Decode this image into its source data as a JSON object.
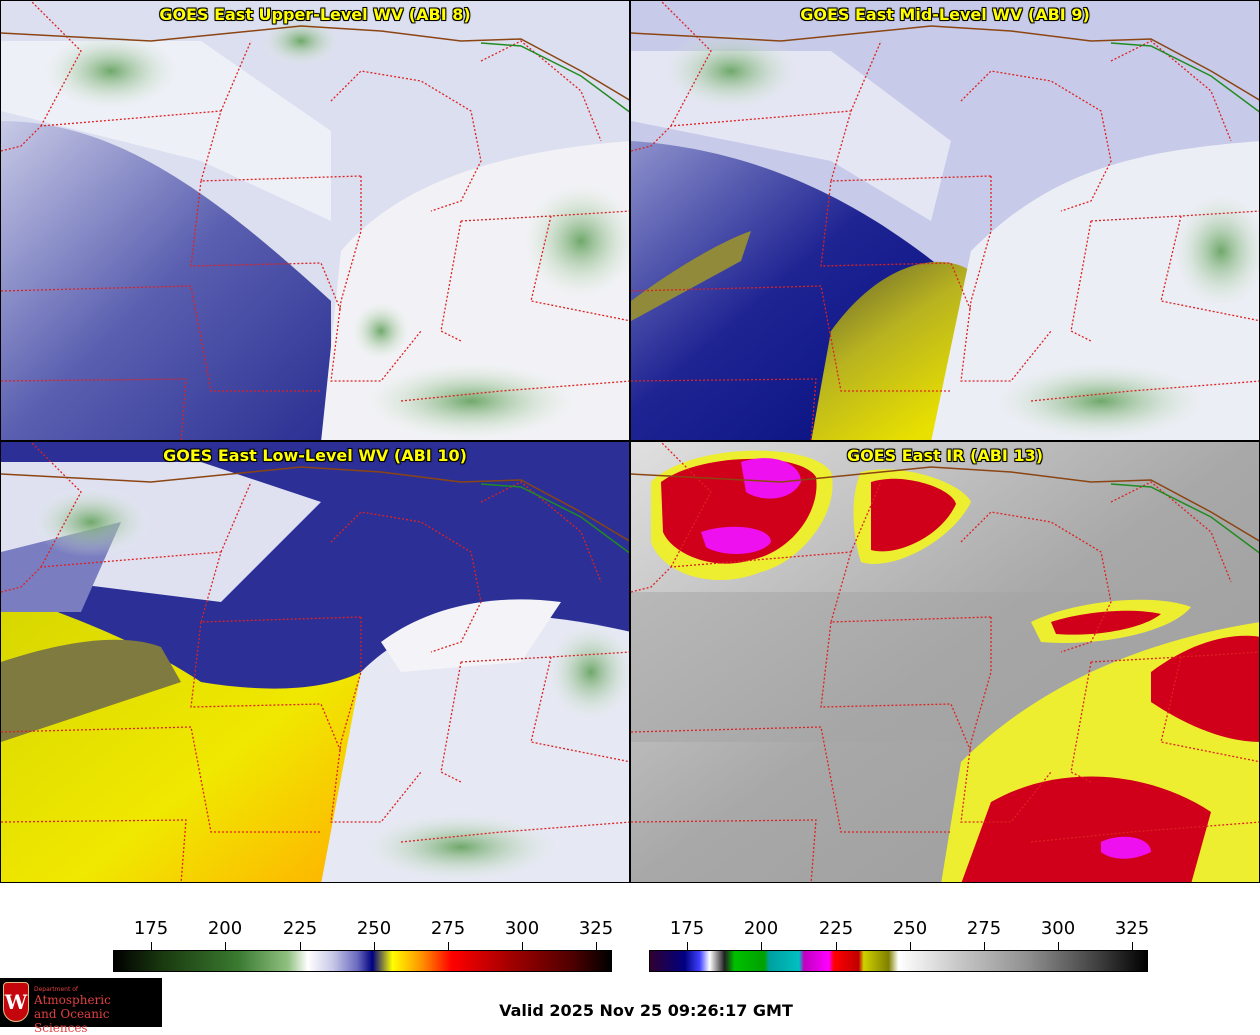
{
  "panels": {
    "upper": {
      "title": "GOES East Upper-Level WV (ABI 8)"
    },
    "mid": {
      "title": "GOES East Mid-Level WV (ABI 9)"
    },
    "low": {
      "title": "GOES East Low-Level WV (ABI 10)"
    },
    "ir": {
      "title": "GOES East IR (ABI 13)"
    }
  },
  "colorbars": {
    "wv": {
      "ticks": [
        "175",
        "200",
        "225",
        "250",
        "275",
        "300",
        "325"
      ]
    },
    "ir": {
      "ticks": [
        "175",
        "200",
        "225",
        "250",
        "275",
        "300",
        "325"
      ]
    }
  },
  "logo": {
    "department": "Department of",
    "line1": "Atmospheric",
    "line2": "and Oceanic Sciences",
    "crest_letter": "W"
  },
  "valid_time": "Valid 2025 Nov 25 09:26:17 GMT",
  "colors": {
    "title_text": "#ffff00",
    "state_borders": "#dd2222",
    "country_border": "#8b4513",
    "lake_border": "#228b22"
  }
}
